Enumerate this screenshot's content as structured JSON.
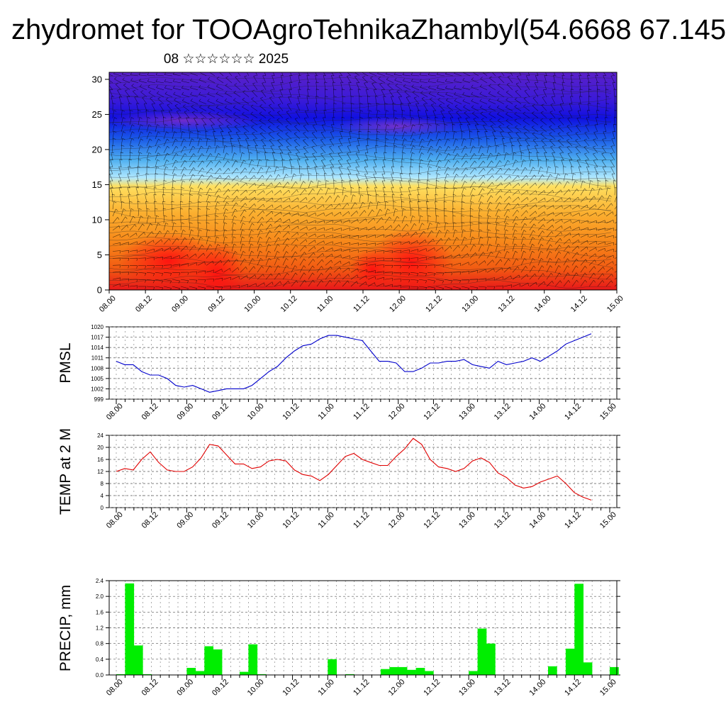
{
  "title": "zhydromet for TOOAgroTehnikaZhambyl(54.6668 67.145",
  "subtitle": "08 ☆☆☆☆☆☆ 2025",
  "chart_data": [
    {
      "type": "heatmap",
      "name": "vertical-cross-section",
      "x_ticks": [
        "08.00",
        "08.12",
        "09.00",
        "09.12",
        "10.00",
        "10.12",
        "11.00",
        "11.12",
        "12.00",
        "12.12",
        "13.00",
        "13.12",
        "14.00",
        "14.12",
        "15.00"
      ],
      "yticks": [
        0,
        5,
        10,
        15,
        20,
        25,
        30
      ],
      "ylim": [
        0,
        31
      ],
      "colormap": [
        "#e8161a",
        "#f25a12",
        "#f7891a",
        "#fbb030",
        "#ffe060",
        "#b0e8ff",
        "#4fb0f0",
        "#1a5ae8",
        "#1010e0",
        "#3a1ad8",
        "#5a20c8"
      ],
      "contours": true,
      "wind_barbs": true
    },
    {
      "type": "line",
      "ylabel": "PMSL",
      "color": "#0000cc",
      "yticks": [
        999,
        1002,
        1005,
        1008,
        1011,
        1014,
        1017,
        1020
      ],
      "ylim": [
        999,
        1020
      ],
      "x_ticks": [
        "08.00",
        "08.12",
        "09.00",
        "09.12",
        "10.00",
        "10.12",
        "11.00",
        "11.12",
        "12.00",
        "12.12",
        "13.00",
        "13.12",
        "14.00",
        "14.12",
        "15.00"
      ],
      "values": [
        1010,
        1009,
        1009,
        1007,
        1006,
        1006,
        1005,
        1003,
        1002.5,
        1003,
        1002,
        1001,
        1001.5,
        1002,
        1002,
        1002,
        1003,
        1005,
        1007,
        1008.5,
        1011,
        1013,
        1014.5,
        1015,
        1016.5,
        1017.5,
        1017.5,
        1017,
        1016.5,
        1016,
        1013,
        1010,
        1010,
        1009.5,
        1007,
        1007,
        1008,
        1009.5,
        1009.5,
        1010,
        1010,
        1010.5,
        1009,
        1008.5,
        1008,
        1010,
        1009,
        1009.5,
        1010,
        1011,
        1010,
        1011.5,
        1013,
        1015,
        1016,
        1017,
        1018
      ]
    },
    {
      "type": "line",
      "ylabel": "TEMP at 2 M",
      "color": "#e00000",
      "yticks": [
        0,
        4,
        8,
        12,
        16,
        20,
        24
      ],
      "ylim": [
        0,
        24
      ],
      "x_ticks": [
        "08.00",
        "08.12",
        "09.00",
        "09.12",
        "10.00",
        "10.12",
        "11.00",
        "11.12",
        "12.00",
        "12.12",
        "13.00",
        "13.12",
        "14.00",
        "14.12",
        "15.00"
      ],
      "values": [
        12,
        13,
        12.5,
        16,
        18.5,
        15,
        12.5,
        12,
        12,
        13.5,
        16.5,
        21,
        20.5,
        17.5,
        14.5,
        14.5,
        13,
        13.5,
        15.5,
        16,
        15.5,
        12.5,
        11,
        10.5,
        9,
        11,
        14,
        17,
        18,
        16,
        15,
        14,
        14,
        17,
        19.5,
        23,
        21,
        16,
        13.5,
        13,
        12,
        13,
        15.5,
        16.5,
        15,
        11.5,
        10,
        7.5,
        6.5,
        7,
        8.5,
        9.5,
        10.5,
        8,
        5,
        3.5,
        2.5
      ]
    },
    {
      "type": "bar",
      "ylabel": "PRECIP, mm",
      "color": "#00ee00",
      "yticks": [
        "0.0",
        "0.4",
        "0.8",
        "1.2",
        "1.6",
        "2.0",
        "2.4"
      ],
      "ylim": [
        0,
        2.4
      ],
      "x_ticks": [
        "08.00",
        "08.12",
        "09.00",
        "09.12",
        "10.00",
        "10.12",
        "11.00",
        "11.12",
        "12.00",
        "12.12",
        "13.00",
        "13.12",
        "14.00",
        "14.12",
        "15.00"
      ],
      "values": [
        0.02,
        2.33,
        0.75,
        0.02,
        0,
        0,
        0,
        0,
        0.18,
        0.1,
        0.73,
        0.65,
        0,
        0,
        0.08,
        0.78,
        0.02,
        0,
        0,
        0,
        0,
        0,
        0,
        0,
        0.4,
        0,
        0.02,
        0,
        0,
        0,
        0.15,
        0.2,
        0.2,
        0.13,
        0.18,
        0.1,
        0,
        0,
        0,
        0,
        0.1,
        1.18,
        0.8,
        0,
        0,
        0,
        0,
        0,
        0,
        0.22,
        0,
        0.67,
        2.32,
        0.32,
        0,
        0,
        0.2,
        0,
        0,
        0,
        0,
        0
      ]
    }
  ]
}
